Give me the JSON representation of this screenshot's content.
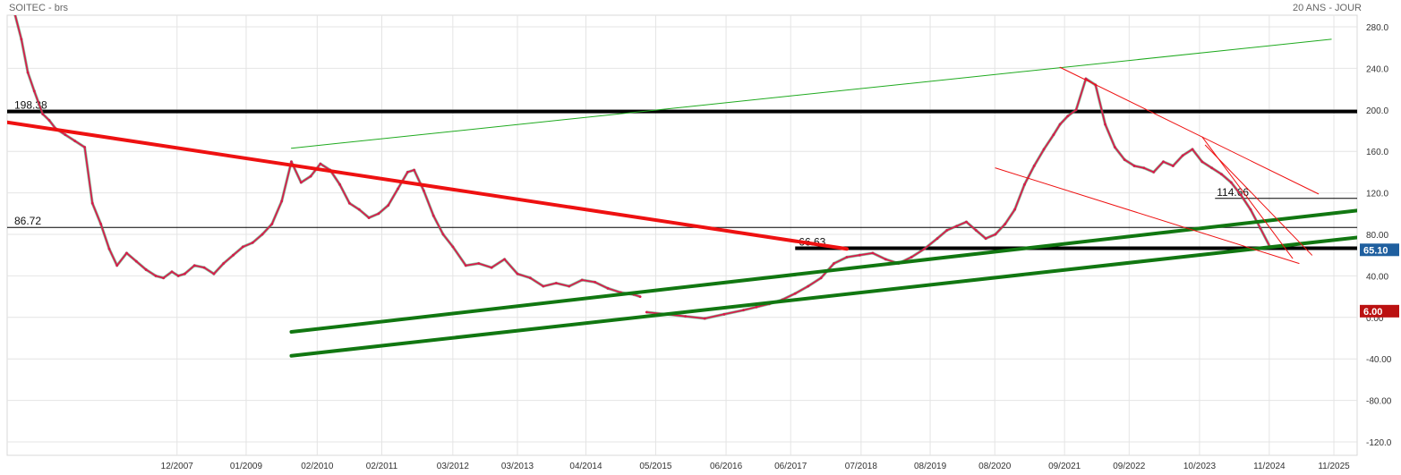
{
  "header": {
    "title": "SOITEC - brs",
    "period": "20 ANS - JOUR"
  },
  "chart_data": {
    "type": "line",
    "title": "SOITEC - brs",
    "subtitle": "20 ANS - JOUR",
    "xlabel": "",
    "ylabel": "",
    "ylim": [
      -130,
      290
    ],
    "xlim": [
      2005.3,
      2026.2
    ],
    "grid": true,
    "x_ticks": [
      {
        "t": 2007.93,
        "label": "12/2007"
      },
      {
        "t": 2009.0,
        "label": "01/2009"
      },
      {
        "t": 2010.1,
        "label": "02/2010"
      },
      {
        "t": 2011.1,
        "label": "02/2011"
      },
      {
        "t": 2012.2,
        "label": "03/2012"
      },
      {
        "t": 2013.2,
        "label": "03/2013"
      },
      {
        "t": 2014.26,
        "label": "04/2014"
      },
      {
        "t": 2015.34,
        "label": "05/2015"
      },
      {
        "t": 2016.43,
        "label": "06/2016"
      },
      {
        "t": 2017.43,
        "label": "06/2017"
      },
      {
        "t": 2018.52,
        "label": "07/2018"
      },
      {
        "t": 2019.59,
        "label": "08/2019"
      },
      {
        "t": 2020.59,
        "label": "08/2020"
      },
      {
        "t": 2021.67,
        "label": "09/2021"
      },
      {
        "t": 2022.67,
        "label": "09/2022"
      },
      {
        "t": 2023.76,
        "label": "10/2023"
      },
      {
        "t": 2024.84,
        "label": "11/2024"
      },
      {
        "t": 2025.84,
        "label": "11/2025"
      }
    ],
    "y_ticks": [
      {
        "v": 280,
        "label": "280.0"
      },
      {
        "v": 240,
        "label": "240.0"
      },
      {
        "v": 200,
        "label": "200.0"
      },
      {
        "v": 160,
        "label": "160.0"
      },
      {
        "v": 120,
        "label": "120.0"
      },
      {
        "v": 80,
        "label": "80.00"
      },
      {
        "v": 40,
        "label": "40.00"
      },
      {
        "v": 0,
        "label": "0.00"
      },
      {
        "v": -40,
        "label": "-40.00"
      },
      {
        "v": -80,
        "label": "-80.00"
      },
      {
        "v": -120,
        "label": "-120.0"
      }
    ],
    "series": [
      {
        "color": "#d81b4a",
        "x": [
          2005.3,
          2005.42,
          2005.52,
          2005.62,
          2005.72,
          2005.85,
          2005.95,
          2006.05,
          2006.2,
          2006.35,
          2006.5,
          2006.62,
          2006.75,
          2006.88,
          2007.0,
          2007.15,
          2007.3,
          2007.45,
          2007.6,
          2007.72,
          2007.85,
          2007.95,
          2008.05,
          2008.2,
          2008.35,
          2008.5,
          2008.65,
          2008.8,
          2008.95,
          2009.1,
          2009.25,
          2009.4,
          2009.55,
          2009.7,
          2009.85,
          2010.0,
          2010.15,
          2010.3,
          2010.45,
          2010.6,
          2010.75,
          2010.9,
          2011.05,
          2011.2,
          2011.35,
          2011.5,
          2011.6,
          2011.75,
          2011.9,
          2012.05,
          2012.2,
          2012.4,
          2012.6,
          2012.8,
          2013.0,
          2013.2,
          2013.4,
          2013.6,
          2013.8,
          2014.0,
          2014.2,
          2014.4,
          2014.6,
          2014.8,
          2015.0,
          2015.1
        ],
        "values": [
          300,
          292,
          268,
          236,
          218,
          196,
          190,
          182,
          176,
          170,
          164,
          110,
          90,
          66,
          50,
          62,
          54,
          46,
          40,
          38,
          44,
          40,
          42,
          50,
          48,
          42,
          52,
          60,
          68,
          72,
          80,
          90,
          112,
          150,
          130,
          136,
          148,
          142,
          128,
          110,
          104,
          96,
          100,
          108,
          124,
          140,
          142,
          122,
          98,
          80,
          68,
          50,
          52,
          48,
          56,
          42,
          38,
          30,
          33,
          30,
          36,
          34,
          28,
          24,
          22,
          20
        ],
        "name": ""
      },
      {
        "color": "#d81b4a",
        "x": [
          2015.2,
          2015.5,
          2015.8,
          2016.1,
          2016.4,
          2016.7,
          2016.9,
          2017.1,
          2017.3,
          2017.5,
          2017.7,
          2017.9,
          2018.1,
          2018.3,
          2018.5,
          2018.7,
          2018.9,
          2019.1,
          2019.3,
          2019.5,
          2019.7,
          2019.85,
          2020.0,
          2020.15,
          2020.3,
          2020.45,
          2020.6,
          2020.75,
          2020.9,
          2021.05,
          2021.2,
          2021.35,
          2021.5,
          2021.6,
          2021.72,
          2021.85,
          2022.0,
          2022.15,
          2022.3,
          2022.45,
          2022.6,
          2022.75,
          2022.9,
          2023.05,
          2023.2,
          2023.35,
          2023.5,
          2023.65,
          2023.8,
          2023.95,
          2024.1,
          2024.25,
          2024.4,
          2024.55,
          2024.7,
          2024.85
        ],
        "values": [
          5,
          3,
          1,
          -1,
          3,
          7,
          10,
          13,
          17,
          23,
          30,
          38,
          52,
          58,
          60,
          62,
          56,
          52,
          58,
          66,
          76,
          84,
          88,
          92,
          84,
          76,
          80,
          90,
          104,
          128,
          146,
          162,
          176,
          186,
          194,
          200,
          230,
          224,
          186,
          164,
          152,
          146,
          144,
          140,
          150,
          146,
          156,
          162,
          150,
          144,
          138,
          130,
          118,
          104,
          86,
          68
        ]
      }
    ],
    "levels": [
      {
        "value": 198.38,
        "label": "198.38",
        "style": "thick",
        "color": "#000000"
      },
      {
        "value": 86.72,
        "label": "86.72",
        "style": "thin",
        "color": "#000000"
      },
      {
        "value": 114.66,
        "label": "114.66",
        "style": "thin",
        "color": "#000000"
      },
      {
        "value": 66.63,
        "label": "66.63",
        "style": "thick",
        "color": "#000000"
      }
    ],
    "trendlines": [
      {
        "color": "#ee1111",
        "width": 4,
        "from": [
          2005.3,
          188
        ],
        "to": [
          2018.3,
          66
        ]
      },
      {
        "color": "#1faa1f",
        "width": 1,
        "from": [
          2009.7,
          163
        ],
        "to": [
          2025.8,
          268
        ]
      },
      {
        "color": "#117711",
        "width": 4,
        "from": [
          2009.7,
          -14
        ],
        "to": [
          2026.2,
          103
        ]
      },
      {
        "color": "#117711",
        "width": 4,
        "from": [
          2009.7,
          -37
        ],
        "to": [
          2026.2,
          77
        ]
      },
      {
        "color": "#ee1111",
        "width": 1,
        "from": [
          2021.6,
          241
        ],
        "to": [
          2025.6,
          119
        ]
      },
      {
        "color": "#ee1111",
        "width": 1,
        "from": [
          2020.6,
          144
        ],
        "to": [
          2025.3,
          52
        ]
      },
      {
        "color": "#ee1111",
        "width": 1,
        "from": [
          2023.8,
          174
        ],
        "to": [
          2025.2,
          57
        ]
      },
      {
        "color": "#ee1111",
        "width": 1,
        "from": [
          2023.85,
          166
        ],
        "to": [
          2025.5,
          60
        ]
      }
    ],
    "badges": [
      {
        "value": 65.1,
        "label": "65.10",
        "color": "#1f5f9f"
      },
      {
        "value": 6.0,
        "label": "6.00",
        "color": "#bb1111"
      }
    ]
  }
}
